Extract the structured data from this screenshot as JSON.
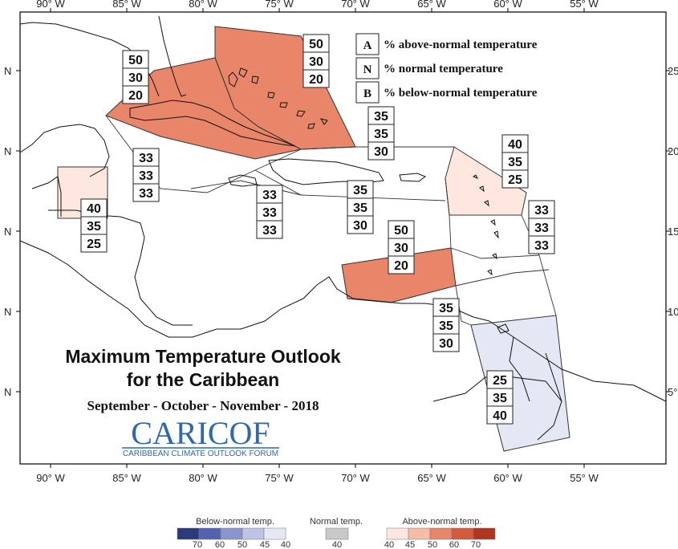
{
  "map": {
    "lon_ticks": [
      "90° W",
      "85° W",
      "80° W",
      "75° W",
      "70° W",
      "65° W",
      "60° W",
      "55° W"
    ],
    "lat_ticks_left": [
      "N",
      "N",
      "N",
      "N",
      "N"
    ],
    "lat_ticks_right": [
      "25",
      "20",
      "15",
      "10",
      "5°"
    ]
  },
  "key": {
    "items": [
      {
        "letter": "A",
        "text": "% above-normal temperature"
      },
      {
        "letter": "N",
        "text": "% normal temperature"
      },
      {
        "letter": "B",
        "text": "% below-normal temperature"
      }
    ]
  },
  "regions": [
    {
      "values": [
        "50",
        "30",
        "20"
      ],
      "category": "above-50"
    },
    {
      "values": [
        "50",
        "30",
        "20"
      ],
      "category": "above-50"
    },
    {
      "values": [
        "35",
        "35",
        "30"
      ],
      "category": "none"
    },
    {
      "values": [
        "40",
        "35",
        "25"
      ],
      "category": "above-40"
    },
    {
      "values": [
        "33",
        "33",
        "33"
      ],
      "category": "none"
    },
    {
      "values": [
        "33",
        "33",
        "33"
      ],
      "category": "none"
    },
    {
      "values": [
        "35",
        "35",
        "30"
      ],
      "category": "none"
    },
    {
      "values": [
        "40",
        "35",
        "25"
      ],
      "category": "above-40"
    },
    {
      "values": [
        "50",
        "30",
        "20"
      ],
      "category": "above-50"
    },
    {
      "values": [
        "33",
        "33",
        "33"
      ],
      "category": "none"
    },
    {
      "values": [
        "35",
        "35",
        "30"
      ],
      "category": "none"
    },
    {
      "values": [
        "25",
        "35",
        "40"
      ],
      "category": "below-40"
    }
  ],
  "title": {
    "line1": "Maximum Temperature Outlook",
    "line2": "for the Caribbean",
    "period": "September - October - November - 2018"
  },
  "logo": {
    "text": "CARICOF",
    "subtitle": "CARIBBEAN CLIMATE OUTLOOK FORUM"
  },
  "scale": {
    "below_title": "Below-normal temp.",
    "normal_title": "Normal temp.",
    "above_title": "Above-normal temp.",
    "below_ticks": [
      "70",
      "60",
      "50",
      "45",
      "40"
    ],
    "normal_ticks": [
      "40"
    ],
    "above_ticks": [
      "40",
      "45",
      "50",
      "60",
      "70"
    ],
    "colors": {
      "below": [
        "#2b3a7a",
        "#5363b0",
        "#8a95cc",
        "#bcc3e4",
        "#e4e8f5"
      ],
      "normal": "#c8c8c8",
      "above": [
        "#fde7df",
        "#f7bca5",
        "#e9866a",
        "#d45a3e",
        "#b2361f"
      ]
    }
  },
  "colors": {
    "above-50": "#e9866a",
    "above-40": "#fde7df",
    "below-40": "#e4e8f5",
    "none": "none"
  }
}
